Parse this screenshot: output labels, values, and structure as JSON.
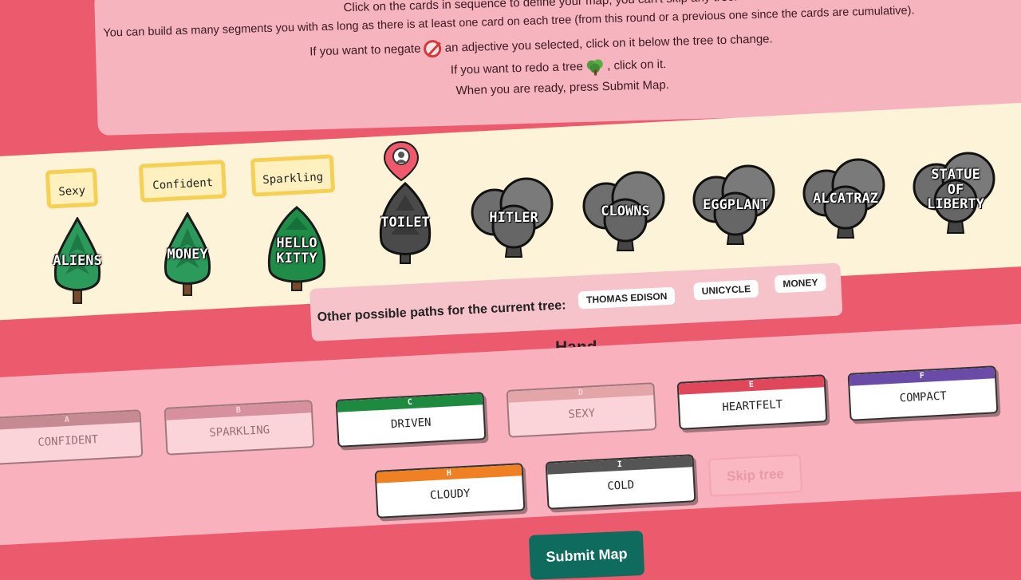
{
  "instructions": {
    "line1": "Click on the cards in sequence to define your map, you can't skip any tree.",
    "line2": "You can build as many segments you with as long as there is at least one card on each tree (from this round or a previous one since the cards are cumulative).",
    "line3a": "If you want to negate",
    "line3b": "an adjective you selected, click on it below the tree to change.",
    "line4a": "If you want to redo a tree",
    "line4b": ", click on it.",
    "line5": "When you are ready, press Submit Map."
  },
  "adjectives": [
    "Sexy",
    "Confident",
    "Sparkling"
  ],
  "trees": [
    {
      "label": "ALIENS",
      "kind": "pine"
    },
    {
      "label": "MONEY",
      "kind": "pine"
    },
    {
      "label": "HELLO\nKITTY",
      "kind": "fir"
    },
    {
      "label": "TOILET",
      "kind": "current"
    },
    {
      "label": "HITLER",
      "kind": "grey"
    },
    {
      "label": "CLOWNS",
      "kind": "grey"
    },
    {
      "label": "EGGPLANT",
      "kind": "grey"
    },
    {
      "label": "ALCATRAZ",
      "kind": "grey"
    },
    {
      "label": "STATUE\nOF\nLIBERTY",
      "kind": "grey"
    }
  ],
  "paths": {
    "label": "Other possible paths for the current tree:",
    "options": [
      "THOMAS EDISON",
      "UNICYCLE",
      "MONEY"
    ]
  },
  "hand": {
    "title": "Hand",
    "cards": [
      {
        "letter": "A",
        "word": "CONFIDENT",
        "color": "#8a5a62",
        "used": true
      },
      {
        "letter": "B",
        "word": "SPARKLING",
        "color": "#b06b79",
        "used": true
      },
      {
        "letter": "C",
        "word": "DRIVEN",
        "color": "#1d8a3f",
        "used": false
      },
      {
        "letter": "D",
        "word": "SEXY",
        "color": "#c9968f",
        "used": true
      },
      {
        "letter": "E",
        "word": "HEARTFELT",
        "color": "#e0475a",
        "used": false
      },
      {
        "letter": "F",
        "word": "COMPACT",
        "color": "#6a4ba8",
        "used": false
      },
      {
        "letter": "H",
        "word": "CLOUDY",
        "color": "#f08024",
        "used": false
      },
      {
        "letter": "I",
        "word": "COLD",
        "color": "#555555",
        "used": false
      }
    ]
  },
  "buttons": {
    "skip": "Skip tree",
    "submit": "Submit Map"
  }
}
